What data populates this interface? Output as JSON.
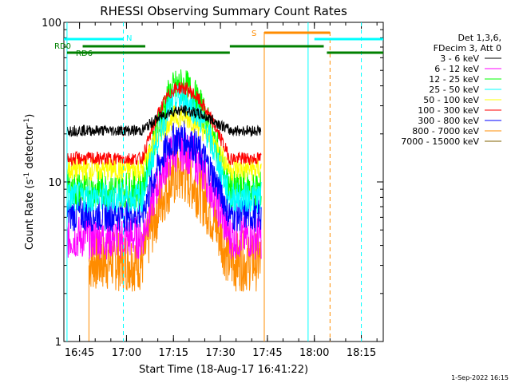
{
  "chart_data": {
    "type": "line",
    "title": "RHESSI Observing Summary Count Rates",
    "xlabel": "Start Time (18-Aug-17 16:41:22)",
    "ylabel_main": "Count Rate (s",
    "ylabel_sup1": "-1",
    "ylabel_mid": " detector",
    "ylabel_sup2": "-1",
    "ylabel_end": ")",
    "y_scale": "log",
    "ylim": [
      1,
      100
    ],
    "xlim": [
      "16:40",
      "18:22"
    ],
    "x_ticks": [
      {
        "t": "16:45",
        "label": "16:45"
      },
      {
        "t": "17:00",
        "label": "17:00"
      },
      {
        "t": "17:15",
        "label": "17:15"
      },
      {
        "t": "17:30",
        "label": "17:30"
      },
      {
        "t": "17:45",
        "label": "17:45"
      },
      {
        "t": "18:00",
        "label": "18:00"
      },
      {
        "t": "18:15",
        "label": "18:15"
      }
    ],
    "y_ticks": [
      {
        "v": 1,
        "label": "1"
      },
      {
        "v": 10,
        "label": "10"
      },
      {
        "v": 100,
        "label": "100"
      }
    ],
    "legend": {
      "placement": "right",
      "header": [
        "Det 1,3,6,",
        "FDecim 3, Att 0"
      ],
      "entries": [
        {
          "label": "3 - 6 keV",
          "color": "#000000"
        },
        {
          "label": "6 - 12 keV",
          "color": "#ff00ff"
        },
        {
          "label": "12 - 25 keV",
          "color": "#00ff00"
        },
        {
          "label": "25 - 50 keV",
          "color": "#00ffff"
        },
        {
          "label": "50 - 100 keV",
          "color": "#ffff00"
        },
        {
          "label": "100 - 300 keV",
          "color": "#ff0000"
        },
        {
          "label": "300 - 800 keV",
          "color": "#0000ff"
        },
        {
          "label": "800 - 7000 keV",
          "color": "#ff8c00"
        },
        {
          "label": "7000 - 15000 keV",
          "color": "#806000"
        }
      ]
    },
    "data_window": {
      "start": "16:41",
      "end": "17:43",
      "rise_start": "17:05",
      "peak": "17:17",
      "fall_end": "17:33"
    },
    "series": [
      {
        "color": "#ff8c00",
        "baseline": 3.2,
        "peak": 11,
        "noise": 0.55,
        "drop_at_start": 1.0,
        "start": "16:48"
      },
      {
        "color": "#ff00ff",
        "baseline": 4.5,
        "peak": 16,
        "noise": 0.4
      },
      {
        "color": "#0000ff",
        "baseline": 6.3,
        "peak": 19,
        "noise": 0.32
      },
      {
        "color": "#00ff00",
        "baseline": 9.0,
        "peak": 40,
        "noise": 0.33
      },
      {
        "color": "#ffff00",
        "baseline": 12.0,
        "peak": 26,
        "noise": 0.22
      },
      {
        "color": "#00ffff",
        "baseline": 8.0,
        "peak": 33,
        "noise": 0.28
      },
      {
        "color": "#ff0000",
        "baseline": 14.0,
        "peak": 39,
        "noise": 0.12
      },
      {
        "color": "#000000",
        "baseline": 21.0,
        "peak": 28,
        "noise": 0.1
      }
    ],
    "flags": {
      "N_label": "N",
      "RD0_label": "RD0",
      "RD6_label": "RD6",
      "S_label": "S",
      "N_color": "#00ffff",
      "RD_color": "#008000",
      "S_color": "#ff8c00",
      "N_segments": [
        [
          "16:40",
          "16:59"
        ],
        [
          "18:00",
          "18:22"
        ]
      ],
      "RD0_segments": [
        [
          "16:46",
          "17:06"
        ],
        [
          "17:33",
          "18:03"
        ]
      ],
      "RD6_segments": [
        [
          "16:41",
          "17:33"
        ],
        [
          "18:04",
          "18:22"
        ]
      ],
      "S_segments": [
        [
          "17:44",
          "18:05"
        ]
      ],
      "N_edges": [
        {
          "t": "16:41",
          "color": "#00ffff",
          "style": "solid"
        },
        {
          "t": "16:59",
          "color": "#00ffff",
          "style": "dashed"
        },
        {
          "t": "17:58",
          "color": "#00ffff",
          "style": "solid"
        },
        {
          "t": "18:15",
          "color": "#00ffff",
          "style": "dashed"
        }
      ],
      "S_edges": [
        {
          "t": "17:44",
          "color": "#ff8c00",
          "style": "solid"
        },
        {
          "t": "18:05",
          "color": "#ff8c00",
          "style": "dashed"
        }
      ]
    },
    "drop_line_t": "16:48",
    "timestamp": "1-Sep-2022 16:15"
  }
}
